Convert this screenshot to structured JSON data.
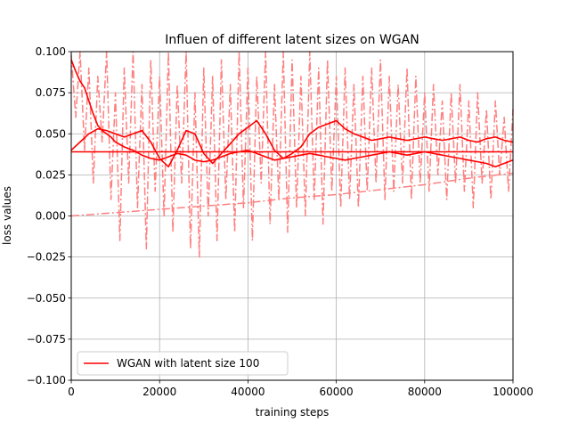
{
  "chart_data": {
    "type": "line",
    "title": "Influen of different latent sizes on WGAN",
    "xlabel": "training steps",
    "ylabel": "loss values",
    "xlim": [
      0,
      100000
    ],
    "ylim": [
      -0.1,
      0.1
    ],
    "xticks": [
      0,
      20000,
      40000,
      60000,
      80000,
      100000
    ],
    "yticks": [
      -0.1,
      -0.075,
      -0.05,
      -0.025,
      0.0,
      0.025,
      0.05,
      0.075,
      0.1
    ],
    "xtick_labels": [
      "0",
      "20000",
      "40000",
      "60000",
      "80000",
      "100000"
    ],
    "ytick_labels": [
      "−0.100",
      "−0.075",
      "−0.050",
      "−0.025",
      "0.000",
      "0.025",
      "0.050",
      "0.075",
      "0.100"
    ],
    "grid": true,
    "legend_position": "lower-left",
    "legend": [
      "WGAN with latent size 100"
    ],
    "series": [
      {
        "name": "WGAN with latent size 100",
        "style": "solid",
        "color": "#ff0000",
        "x": [
          0,
          1000,
          2000,
          3000,
          4000,
          5000,
          6000,
          7000,
          8000,
          9000,
          10000,
          12000,
          14000,
          16000,
          18000,
          20000,
          22000,
          24000,
          26000,
          28000,
          30000,
          32000,
          34000,
          36000,
          38000,
          40000,
          42000,
          44000,
          46000,
          48000,
          50000,
          52000,
          54000,
          56000,
          58000,
          60000,
          62000,
          64000,
          66000,
          68000,
          70000,
          72000,
          74000,
          76000,
          78000,
          80000,
          82000,
          84000,
          86000,
          88000,
          90000,
          92000,
          94000,
          96000,
          98000,
          100000
        ],
        "y": [
          0.095,
          0.088,
          0.082,
          0.078,
          0.07,
          0.062,
          0.055,
          0.052,
          0.05,
          0.048,
          0.045,
          0.042,
          0.04,
          0.037,
          0.035,
          0.034,
          0.036,
          0.038,
          0.037,
          0.034,
          0.033,
          0.034,
          0.036,
          0.038,
          0.039,
          0.04,
          0.038,
          0.036,
          0.034,
          0.035,
          0.036,
          0.037,
          0.038,
          0.037,
          0.036,
          0.035,
          0.034,
          0.035,
          0.036,
          0.037,
          0.038,
          0.039,
          0.038,
          0.037,
          0.038,
          0.039,
          0.038,
          0.037,
          0.036,
          0.035,
          0.034,
          0.033,
          0.032,
          0.03,
          0.032,
          0.034
        ]
      },
      {
        "style": "solid",
        "color": "#ff0000",
        "x": [
          0,
          2000,
          4000,
          6000,
          8000,
          10000,
          12000,
          14000,
          16000,
          18000,
          20000,
          22000,
          24000,
          26000,
          28000,
          30000,
          32000,
          34000,
          36000,
          38000,
          40000,
          42000,
          44000,
          46000,
          48000,
          50000,
          52000,
          54000,
          56000,
          58000,
          60000,
          62000,
          64000,
          66000,
          68000,
          70000,
          72000,
          74000,
          76000,
          78000,
          80000,
          82000,
          84000,
          86000,
          88000,
          90000,
          92000,
          94000,
          96000,
          98000,
          100000
        ],
        "y": [
          0.04,
          0.045,
          0.05,
          0.053,
          0.052,
          0.05,
          0.048,
          0.05,
          0.052,
          0.045,
          0.035,
          0.03,
          0.04,
          0.052,
          0.05,
          0.038,
          0.032,
          0.038,
          0.044,
          0.05,
          0.054,
          0.058,
          0.05,
          0.04,
          0.035,
          0.038,
          0.042,
          0.05,
          0.054,
          0.056,
          0.058,
          0.053,
          0.05,
          0.048,
          0.046,
          0.047,
          0.048,
          0.047,
          0.046,
          0.047,
          0.048,
          0.047,
          0.046,
          0.047,
          0.048,
          0.046,
          0.045,
          0.047,
          0.048,
          0.046,
          0.045
        ]
      },
      {
        "style": "solid",
        "color": "#ff0000",
        "x": [
          0,
          100000
        ],
        "y": [
          0.039,
          0.039
        ]
      },
      {
        "style": "dashdot",
        "color": "#ff7f7f",
        "x": [
          0,
          10000,
          20000,
          30000,
          40000,
          50000,
          60000,
          70000,
          80000,
          90000,
          100000
        ],
        "y": [
          0.0,
          0.002,
          0.004,
          0.006,
          0.008,
          0.011,
          0.013,
          0.016,
          0.019,
          0.023,
          0.026
        ]
      },
      {
        "style": "dashdot",
        "color": "#ff7f7f",
        "note": "noisy raw loss",
        "x": [
          0,
          1000,
          2000,
          3000,
          4000,
          5000,
          6000,
          7000,
          8000,
          9000,
          10000,
          11000,
          12000,
          13000,
          14000,
          15000,
          16000,
          17000,
          18000,
          19000,
          20000,
          21000,
          22000,
          23000,
          24000,
          25000,
          26000,
          27000,
          28000,
          29000,
          30000,
          31000,
          32000,
          33000,
          34000,
          35000,
          36000,
          37000,
          38000,
          39000,
          40000,
          41000,
          42000,
          43000,
          44000,
          45000,
          46000,
          47000,
          48000,
          49000,
          50000,
          51000,
          52000,
          53000,
          54000,
          55000,
          56000,
          57000,
          58000,
          59000,
          60000,
          61000,
          62000,
          63000,
          64000,
          65000,
          66000,
          67000,
          68000,
          69000,
          70000,
          71000,
          72000,
          73000,
          74000,
          75000,
          76000,
          77000,
          78000,
          79000,
          80000,
          81000,
          82000,
          83000,
          84000,
          85000,
          86000,
          87000,
          88000,
          89000,
          90000,
          91000,
          92000,
          93000,
          94000,
          95000,
          96000,
          97000,
          98000,
          99000,
          100000
        ],
        "y": [
          0.098,
          0.06,
          0.1,
          0.04,
          0.09,
          0.02,
          0.085,
          0.045,
          0.1,
          0.01,
          0.075,
          -0.015,
          0.09,
          0.02,
          0.1,
          0.005,
          0.08,
          -0.02,
          0.095,
          0.015,
          0.085,
          0.0,
          0.1,
          -0.01,
          0.08,
          0.02,
          0.1,
          -0.02,
          0.075,
          -0.025,
          0.09,
          0.0,
          0.085,
          -0.015,
          0.095,
          0.01,
          0.08,
          -0.01,
          0.1,
          0.005,
          0.09,
          -0.015,
          0.085,
          0.02,
          0.1,
          -0.005,
          0.08,
          0.01,
          0.1,
          -0.01,
          0.095,
          0.005,
          0.085,
          0.0,
          0.1,
          0.01,
          0.09,
          -0.005,
          0.095,
          0.015,
          0.085,
          0.005,
          0.09,
          0.01,
          0.08,
          0.005,
          0.085,
          0.015,
          0.09,
          0.02,
          0.095,
          0.01,
          0.085,
          0.015,
          0.08,
          0.02,
          0.09,
          0.01,
          0.085,
          0.02,
          0.075,
          0.015,
          0.08,
          0.025,
          0.07,
          0.01,
          0.075,
          0.02,
          0.08,
          0.015,
          0.07,
          0.005,
          0.075,
          0.02,
          0.065,
          0.01,
          0.07,
          0.025,
          0.06,
          0.015,
          0.065
        ]
      }
    ]
  }
}
